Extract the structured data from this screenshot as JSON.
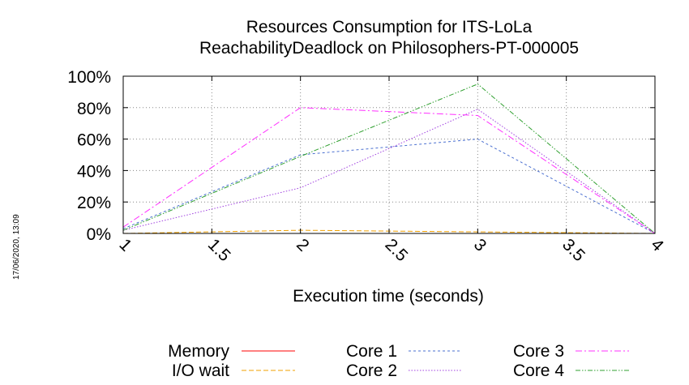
{
  "chart_data": {
    "type": "line",
    "title": "Resources Consumption for ITS-LoLa",
    "subtitle": "ReachabilityDeadlock on Philosophers-PT-000005",
    "xlabel": "Execution time (seconds)",
    "ylabel": "",
    "xlim": [
      1,
      4
    ],
    "ylim": [
      0,
      100
    ],
    "x_ticks": [
      "1",
      "1.5",
      "2",
      "2.5",
      "3",
      "3.5",
      "4"
    ],
    "y_ticks": [
      "0%",
      "20%",
      "40%",
      "60%",
      "80%",
      "100%"
    ],
    "grid": true,
    "legend_position": "bottom",
    "x": [
      1,
      2,
      3,
      4
    ],
    "series": [
      {
        "name": "Memory",
        "color": "#ff0000",
        "values": [
          0,
          0,
          0,
          0
        ]
      },
      {
        "name": "I/O wait",
        "color": "#f0a000",
        "values": [
          0,
          2,
          1,
          0
        ]
      },
      {
        "name": "Core 1",
        "color": "#4a6fd0",
        "values": [
          3,
          50,
          60,
          0
        ]
      },
      {
        "name": "Core 2",
        "color": "#a040e0",
        "values": [
          2,
          29,
          79,
          0
        ]
      },
      {
        "name": "Core 3",
        "color": "#ff30ff",
        "values": [
          4,
          80,
          75,
          0
        ]
      },
      {
        "name": "Core 4",
        "color": "#30a030",
        "values": [
          2,
          49,
          95,
          0
        ]
      }
    ]
  },
  "timestamp": "17/06/2020, 13:09"
}
